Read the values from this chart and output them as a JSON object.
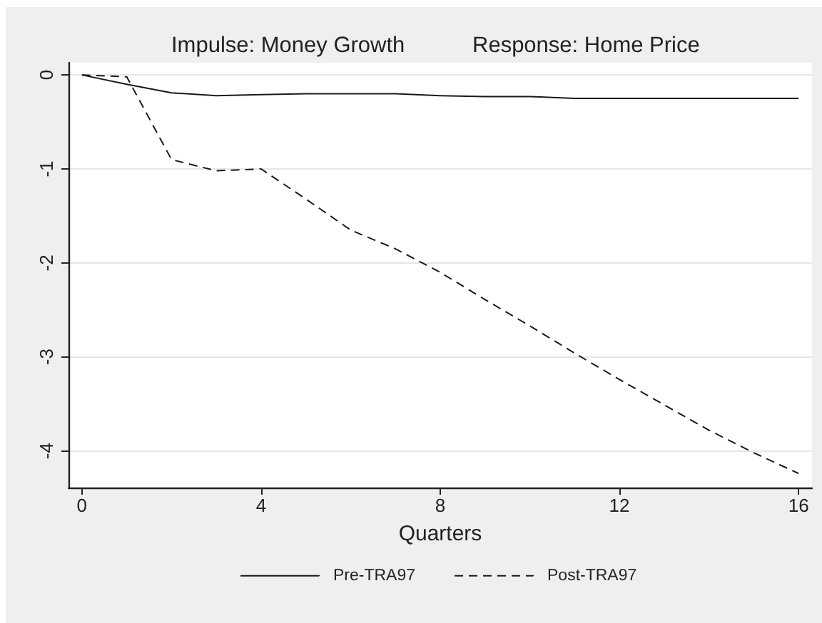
{
  "chart_data": {
    "type": "line",
    "title": "Impulse: Money Growth",
    "subtitle": "Response: Home Price",
    "xlabel": "Quarters",
    "x": [
      0,
      1,
      2,
      3,
      4,
      5,
      6,
      7,
      8,
      9,
      10,
      11,
      12,
      13,
      14,
      15,
      16
    ],
    "series": [
      {
        "name": "Pre-TRA97",
        "color": "#1a1a1a",
        "line_style": "solid",
        "values": [
          0,
          -0.1,
          -0.19,
          -0.22,
          -0.21,
          -0.2,
          -0.2,
          -0.2,
          -0.22,
          -0.23,
          -0.23,
          -0.25,
          -0.25,
          -0.25,
          -0.25,
          -0.25,
          -0.25
        ]
      },
      {
        "name": "Post-TRA97",
        "color": "#1a1a1a",
        "line_style": "dashed",
        "values": [
          0,
          -0.02,
          -0.9,
          -1.02,
          -1.0,
          -1.32,
          -1.65,
          -1.85,
          -2.1,
          -2.39,
          -2.67,
          -2.96,
          -3.24,
          -3.51,
          -3.78,
          -4.02,
          -4.24
        ]
      }
    ],
    "xlim": [
      -0.3,
      16.3
    ],
    "ylim": [
      -4.39,
      0.13
    ],
    "xticks": [
      0,
      4,
      8,
      12,
      16
    ],
    "yticks": [
      0,
      -1,
      -2,
      -3,
      -4
    ],
    "grid": "y",
    "legend": "bottom",
    "marker": "none"
  }
}
